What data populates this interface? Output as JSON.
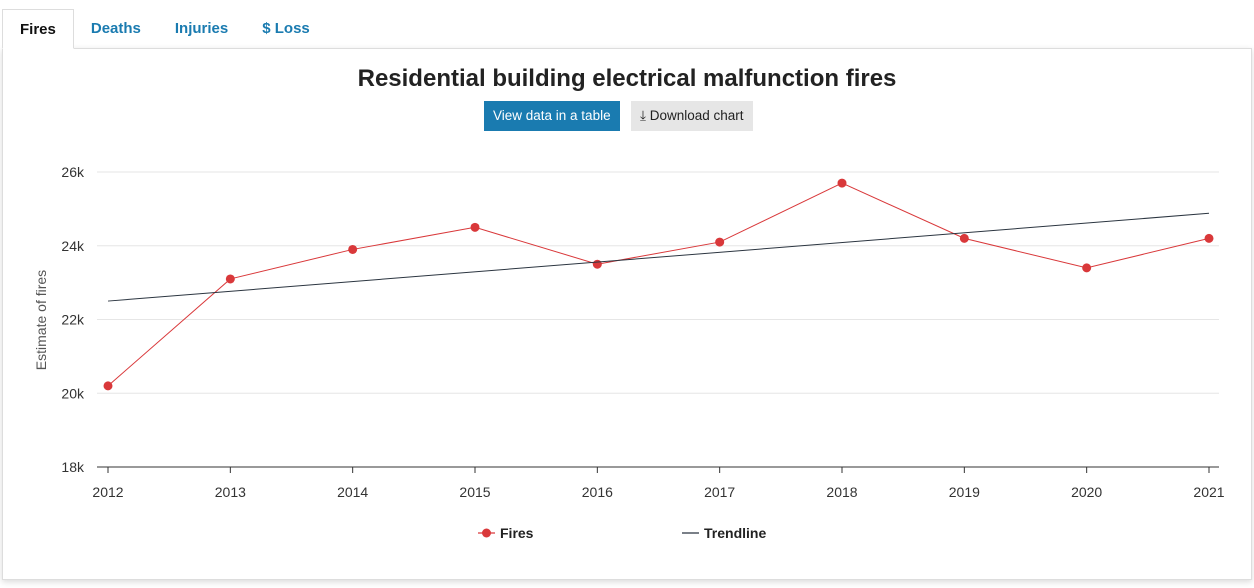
{
  "tabs": [
    "Fires",
    "Deaths",
    "Injuries",
    "$ Loss"
  ],
  "active_tab": "Fires",
  "buttons": {
    "view_table": "View data in a table",
    "download": "Download chart"
  },
  "icons": {
    "download": "download-icon"
  },
  "chart_data": {
    "type": "line",
    "title": "Residential building electrical malfunction fires",
    "ylabel": "Estimate of fires",
    "xlabel": "",
    "x": [
      "2012",
      "2013",
      "2014",
      "2015",
      "2016",
      "2017",
      "2018",
      "2019",
      "2020",
      "2021"
    ],
    "ylim": [
      18000,
      26000
    ],
    "yticks": [
      "18k",
      "20k",
      "22k",
      "24k",
      "26k"
    ],
    "grid": true,
    "legend": "bottom",
    "series": [
      {
        "name": "Fires",
        "color": "#d9383a",
        "values": [
          20200,
          23100,
          23900,
          24500,
          23500,
          24100,
          25700,
          24200,
          23400,
          24200
        ],
        "markers": true
      },
      {
        "name": "Trendline",
        "color": "#2b3540",
        "values": [
          22500,
          null,
          null,
          null,
          null,
          null,
          null,
          null,
          null,
          24880
        ],
        "markers": false
      }
    ]
  }
}
